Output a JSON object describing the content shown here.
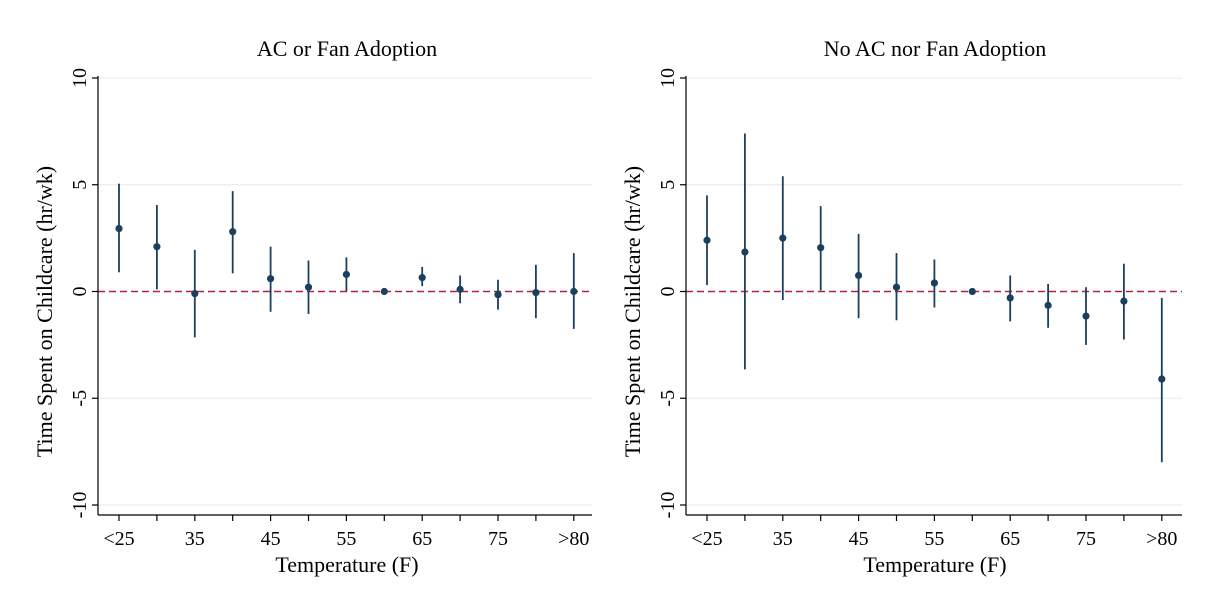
{
  "chart_data": [
    {
      "type": "scatter",
      "title": "AC or Fan Adoption",
      "xlabel": "Temperature (F)",
      "ylabel": "Time Spent on Childcare (hr/wk)",
      "ylim": [
        -10,
        10
      ],
      "yticks": [
        "-10",
        "-5",
        "0",
        "5",
        "10"
      ],
      "xtick_labels": [
        "<25",
        "35",
        "45",
        "55",
        "65",
        "75",
        ">80"
      ],
      "reference_line": {
        "y": 0,
        "style": "dashed",
        "color": "#b0204a"
      },
      "grid": true,
      "point_color": "#1b3f5e",
      "points": [
        {
          "x": "<25",
          "y": 2.95,
          "lo": 0.9,
          "hi": 5.05
        },
        {
          "x": "30",
          "y": 2.1,
          "lo": 0.1,
          "hi": 4.05
        },
        {
          "x": "35",
          "y": -0.1,
          "lo": -2.15,
          "hi": 1.95
        },
        {
          "x": "40",
          "y": 2.8,
          "lo": 0.85,
          "hi": 4.7
        },
        {
          "x": "45",
          "y": 0.6,
          "lo": -0.95,
          "hi": 2.1
        },
        {
          "x": "50",
          "y": 0.2,
          "lo": -1.05,
          "hi": 1.45
        },
        {
          "x": "55",
          "y": 0.8,
          "lo": 0.0,
          "hi": 1.6
        },
        {
          "x": "60",
          "y": 0.0,
          "lo": 0.0,
          "hi": 0.0
        },
        {
          "x": "65",
          "y": 0.65,
          "lo": 0.25,
          "hi": 1.15
        },
        {
          "x": "70",
          "y": 0.1,
          "lo": -0.55,
          "hi": 0.75
        },
        {
          "x": "75",
          "y": -0.15,
          "lo": -0.85,
          "hi": 0.55
        },
        {
          "x": "80",
          "y": -0.05,
          "lo": -1.25,
          "hi": 1.25
        },
        {
          "x": ">80",
          "y": 0.0,
          "lo": -1.75,
          "hi": 1.8
        }
      ]
    },
    {
      "type": "scatter",
      "title": "No AC nor Fan Adoption",
      "xlabel": "Temperature (F)",
      "ylabel": "Time Spent on Childcare (hr/wk)",
      "ylim": [
        -10,
        10
      ],
      "yticks": [
        "-10",
        "-5",
        "0",
        "5",
        "10"
      ],
      "xtick_labels": [
        "<25",
        "35",
        "45",
        "55",
        "65",
        "75",
        ">80"
      ],
      "reference_line": {
        "y": 0,
        "style": "dashed",
        "color": "#b0204a"
      },
      "grid": true,
      "point_color": "#1b3f5e",
      "points": [
        {
          "x": "<25",
          "y": 2.4,
          "lo": 0.3,
          "hi": 4.5
        },
        {
          "x": "30",
          "y": 1.85,
          "lo": -3.65,
          "hi": 7.4
        },
        {
          "x": "35",
          "y": 2.5,
          "lo": -0.4,
          "hi": 5.4
        },
        {
          "x": "40",
          "y": 2.05,
          "lo": 0.05,
          "hi": 4.0
        },
        {
          "x": "45",
          "y": 0.75,
          "lo": -1.25,
          "hi": 2.7
        },
        {
          "x": "50",
          "y": 0.2,
          "lo": -1.35,
          "hi": 1.8
        },
        {
          "x": "55",
          "y": 0.4,
          "lo": -0.75,
          "hi": 1.5
        },
        {
          "x": "60",
          "y": 0.0,
          "lo": 0.0,
          "hi": 0.0
        },
        {
          "x": "65",
          "y": -0.3,
          "lo": -1.4,
          "hi": 0.75
        },
        {
          "x": "70",
          "y": -0.65,
          "lo": -1.7,
          "hi": 0.35
        },
        {
          "x": "75",
          "y": -1.15,
          "lo": -2.5,
          "hi": 0.2
        },
        {
          "x": "80",
          "y": -0.45,
          "lo": -2.25,
          "hi": 1.3
        },
        {
          "x": ">80",
          "y": -4.1,
          "lo": -8.0,
          "hi": -0.3
        }
      ]
    }
  ]
}
